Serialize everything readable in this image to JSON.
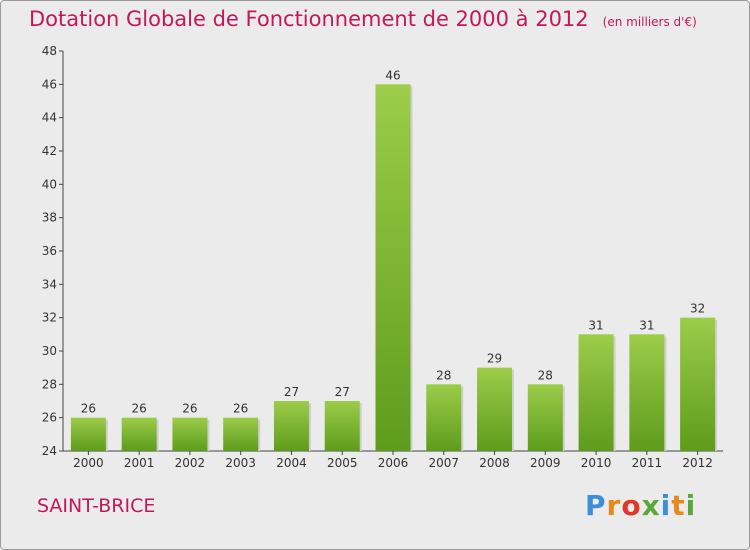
{
  "title": "Dotation Globale de Fonctionnement de 2000 à 2012",
  "unit_note": "(en milliers d'€)",
  "commune": "SAINT-BRICE",
  "logo": {
    "text": "Proxiti",
    "letter_colors": [
      "#3b8fd6",
      "#e8891c",
      "#e2362b",
      "#5aa83a",
      "#3b8fd6",
      "#e8891c",
      "#5aa83a"
    ]
  },
  "colors": {
    "title": "#c2185b",
    "bar_top": "#9ccc4a",
    "bar_bottom": "#5e9c1c",
    "background": "#ebebeb"
  },
  "chart_data": {
    "type": "bar",
    "title": "Dotation Globale de Fonctionnement de 2000 à 2012",
    "unit": "(en milliers d'€)",
    "categories": [
      "2000",
      "2001",
      "2002",
      "2003",
      "2004",
      "2005",
      "2006",
      "2007",
      "2008",
      "2009",
      "2010",
      "2011",
      "2012"
    ],
    "values": [
      26,
      26,
      26,
      26,
      27,
      27,
      46,
      28,
      29,
      28,
      31,
      31,
      32
    ],
    "data_labels": [
      "26",
      "26",
      "26",
      "26",
      "27",
      "27",
      "46",
      "28",
      "29",
      "28",
      "31",
      "31",
      "32"
    ],
    "ylim": [
      24,
      48
    ],
    "yticks": [
      "24",
      "26",
      "28",
      "30",
      "32",
      "34",
      "36",
      "38",
      "40",
      "42",
      "44",
      "46",
      "48"
    ],
    "grid": false,
    "legend": "none"
  }
}
